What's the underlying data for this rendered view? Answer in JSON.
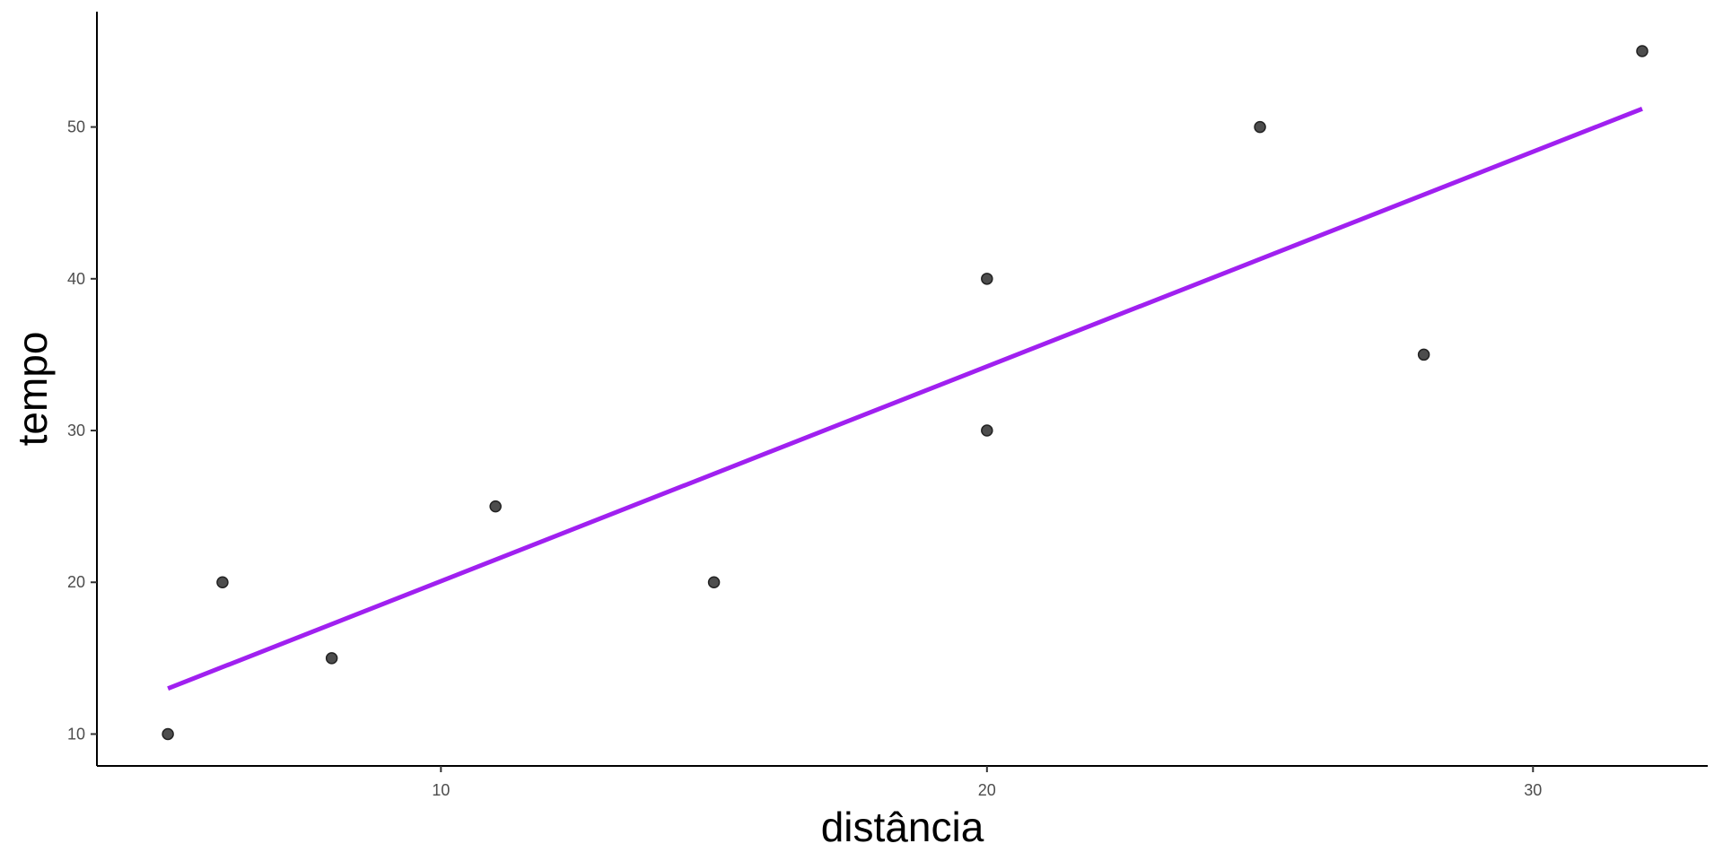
{
  "chart_data": {
    "type": "scatter",
    "title": "",
    "xlabel": "distância",
    "ylabel": "tempo",
    "xlim": [
      3.7,
      33.2
    ],
    "ylim": [
      7.9,
      57.6
    ],
    "x_ticks": [
      10,
      20,
      30
    ],
    "y_ticks": [
      10,
      20,
      30,
      40,
      50
    ],
    "grid": false,
    "legend": "none",
    "series": [
      {
        "x": [
          5,
          6,
          8,
          11,
          15,
          20,
          20,
          25,
          28,
          32
        ],
        "y": [
          10,
          20,
          15,
          25,
          20,
          30,
          40,
          50,
          35,
          55
        ]
      }
    ],
    "trend_line": {
      "type": "linear",
      "x_range": [
        5,
        32
      ],
      "y_at_range": [
        13,
        51.2
      ]
    },
    "colors": {
      "points": "#4d4d4d",
      "trend_line": "#a020f0",
      "axis": "#000000",
      "tick_text": "#4d4d4d",
      "axis_title": "#000000"
    }
  }
}
